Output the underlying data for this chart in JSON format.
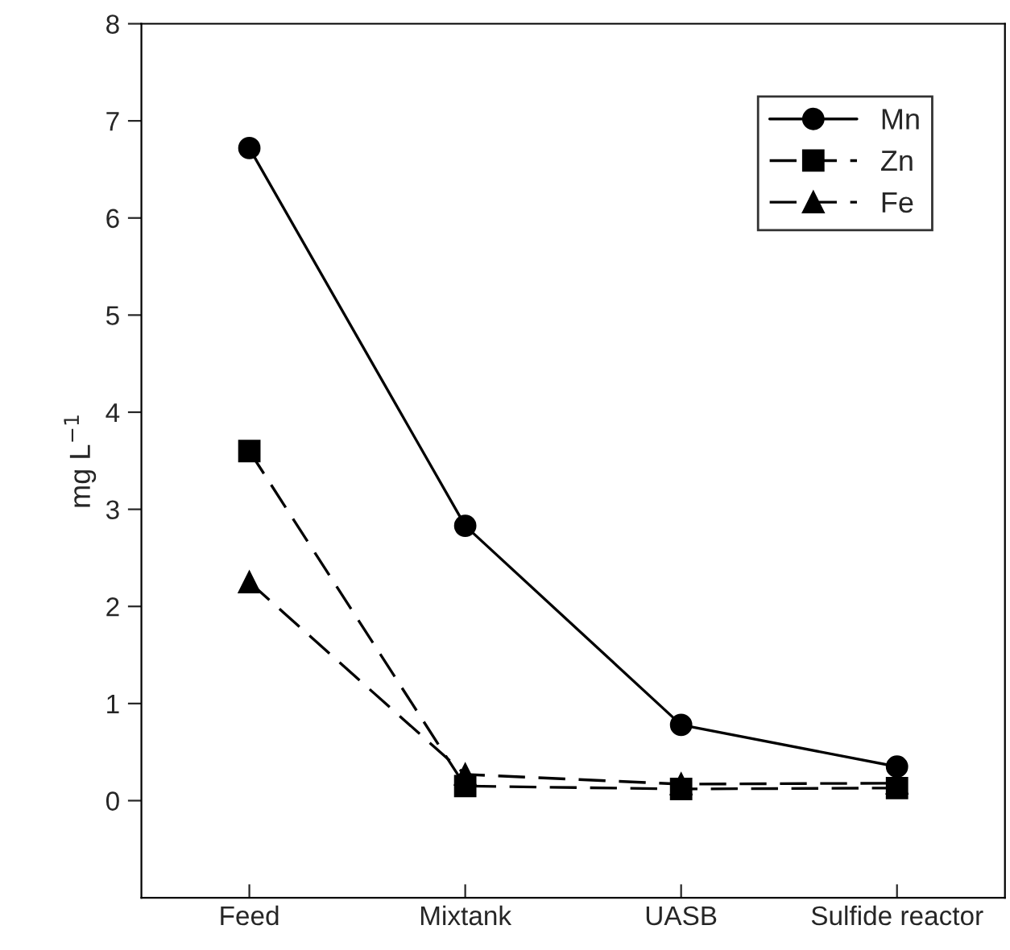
{
  "chart_data": {
    "type": "line",
    "ylabel": "mg L$^{−1}$",
    "categories": [
      "Feed",
      "Mixtank",
      "UASB",
      "Sulfide reactor"
    ],
    "series": [
      {
        "name": "Mn",
        "color": "#000000",
        "marker": "circle",
        "line_style": "solid",
        "values": [
          6.72,
          2.83,
          0.78,
          0.35
        ]
      },
      {
        "name": "Zn",
        "color": "#000000",
        "marker": "square",
        "line_style": "dashed",
        "values": [
          3.6,
          0.15,
          0.12,
          0.13
        ]
      },
      {
        "name": "Fe",
        "color": "#000000",
        "marker": "triangle",
        "line_style": "dashed",
        "values": [
          2.25,
          0.27,
          0.17,
          0.18
        ]
      }
    ],
    "ylim": [
      -1,
      8
    ],
    "yticks": [
      0,
      1,
      2,
      3,
      4,
      5,
      6,
      7,
      8
    ],
    "grid": false,
    "legend": "top right"
  }
}
